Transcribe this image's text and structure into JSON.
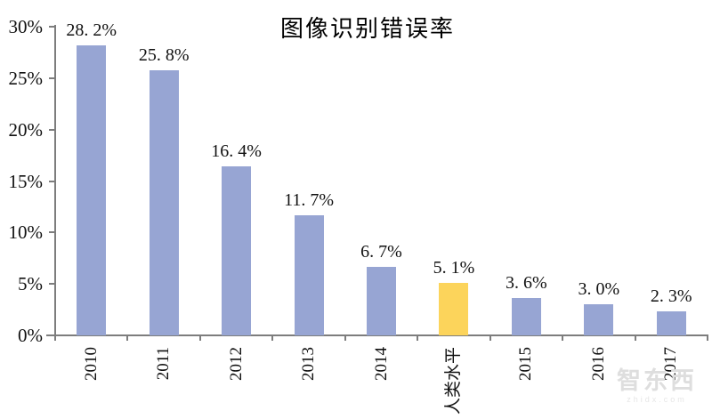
{
  "title": "图像识别错误率",
  "chart_data": {
    "type": "bar",
    "title": "图像识别错误率",
    "categories": [
      "2010",
      "2011",
      "2012",
      "2013",
      "2014",
      "人类水平",
      "2015",
      "2016",
      "2017"
    ],
    "values": [
      28.2,
      25.8,
      16.4,
      11.7,
      6.7,
      5.1,
      3.6,
      3.0,
      2.3
    ],
    "value_labels": [
      "28. 2%",
      "25. 8%",
      "16. 4%",
      "11. 7%",
      "6. 7%",
      "5. 1%",
      "3. 6%",
      "3. 0%",
      "2. 3%"
    ],
    "highlight_index": 5,
    "highlight_category": "人类水平",
    "bar_color": "#97a5d3",
    "highlight_color": "#fcd45b",
    "axis_color": "#7d7d7d",
    "text_color": "#111111",
    "xlabel": "",
    "ylabel": "",
    "ylim": [
      0,
      30
    ],
    "grid": false,
    "legend": "none",
    "yticks": [
      {
        "label": "30%",
        "value": 30
      },
      {
        "label": "25%",
        "value": 25
      },
      {
        "label": "20%",
        "value": 20
      },
      {
        "label": "15%",
        "value": 15
      },
      {
        "label": "10%",
        "value": 10
      },
      {
        "label": "5%",
        "value": 5
      },
      {
        "label": "0%",
        "value": 0
      }
    ]
  },
  "watermark": {
    "logo": "智东西",
    "url": "zhidx.com"
  }
}
